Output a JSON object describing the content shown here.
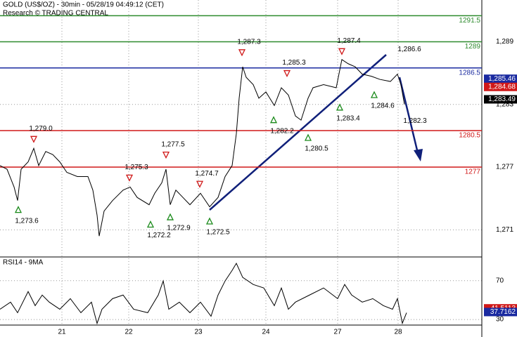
{
  "chart_data": [
    {
      "type": "line",
      "title": "GOLD (US$/OZ) - 30min - 05/28/19 04:49:12 (CET)",
      "subtitle": "Research © TRADING CENTRAL",
      "xlim": [
        0,
        342.5
      ],
      "xticks": [
        {
          "value": 44,
          "label": "21"
        },
        {
          "value": 91.5,
          "label": "22"
        },
        {
          "value": 141,
          "label": "23"
        },
        {
          "value": 189,
          "label": "24"
        },
        {
          "value": 240,
          "label": "27"
        },
        {
          "value": 283,
          "label": "28"
        }
      ],
      "ylim": [
        1268.4,
        1293
      ],
      "yticks": [
        {
          "value": 1271,
          "label": "1,271"
        },
        {
          "value": 1277,
          "label": "1,277"
        },
        {
          "value": 1283,
          "label": "1,283"
        },
        {
          "value": 1289,
          "label": "1,289"
        }
      ],
      "grid": true,
      "series": [
        {
          "color": "#000000",
          "x": [
            0,
            5,
            10,
            12.5,
            15,
            20,
            24,
            27.5,
            32.5,
            37.5,
            42.5,
            47.5,
            55,
            62.5,
            66,
            69,
            70.5,
            74,
            80,
            87.5,
            92.5,
            97.5,
            106,
            110,
            115,
            118,
            121,
            125,
            130,
            135,
            142.5,
            149,
            155,
            160,
            165,
            168,
            170,
            172.5,
            175,
            180,
            184,
            189,
            195,
            200,
            205,
            210,
            214,
            219,
            222.5,
            230,
            239,
            243,
            247.5,
            252.5,
            257.5,
            264,
            270,
            277.5,
            282.5,
            285,
            287.5
          ],
          "values": [
            1277.15,
            1276.8,
            1275.1,
            1273.8,
            1276.8,
            1277.5,
            1278.8,
            1277.15,
            1278.5,
            1278.2,
            1277.5,
            1276.5,
            1276.1,
            1276.1,
            1274.8,
            1272.4,
            1270.4,
            1272.8,
            1273.8,
            1274.8,
            1275.1,
            1274.1,
            1273.4,
            1274.5,
            1275.5,
            1276.8,
            1273.4,
            1274.8,
            1274.1,
            1273.4,
            1274.5,
            1273.2,
            1274.1,
            1276.1,
            1277.15,
            1280.2,
            1283.6,
            1286.6,
            1285.6,
            1284.9,
            1283.6,
            1284.2,
            1282.9,
            1284.6,
            1283.9,
            1281.9,
            1281.5,
            1283.6,
            1284.6,
            1284.9,
            1284.6,
            1287.3,
            1286.9,
            1286.6,
            1285.9,
            1285.7,
            1285.4,
            1285.2,
            1285.9,
            1284.9,
            1283.0
          ]
        }
      ],
      "levels": [
        {
          "value": 1291.5,
          "label": "1291.5",
          "color": "#2e8b2e"
        },
        {
          "value": 1289,
          "label": "1289",
          "color": "#2e8b2e"
        },
        {
          "value": 1286.5,
          "label": "1286.5",
          "color": "#1a2aa0"
        },
        {
          "value": 1280.5,
          "label": "1280.5",
          "color": "#d01818"
        },
        {
          "value": 1277,
          "label": "1277",
          "color": "#d01818"
        }
      ],
      "price_tags": [
        {
          "value": 1285.46,
          "label": "1,285.46",
          "color": "#1a2aa0"
        },
        {
          "value": 1284.68,
          "label": "1,284.68",
          "color": "#d01818"
        },
        {
          "value": 1283.49,
          "label": "1,283.49",
          "color": "#000000"
        }
      ],
      "annotations": [
        {
          "x": 24,
          "value": 1279.0,
          "label": "1,279.0",
          "marker": "down"
        },
        {
          "x": 13,
          "value": 1273.6,
          "label": "1,273.6",
          "marker": "up"
        },
        {
          "x": 92,
          "value": 1275.3,
          "label": "1,275.3",
          "marker": "down"
        },
        {
          "x": 107,
          "value": 1272.2,
          "label": "1,272.2",
          "marker": "up"
        },
        {
          "x": 118,
          "value": 1277.5,
          "label": "1,277.5",
          "marker": "down"
        },
        {
          "x": 121,
          "value": 1272.9,
          "label": "1,272.9",
          "marker": "up"
        },
        {
          "x": 142,
          "value": 1274.7,
          "label": "1,274.7",
          "marker": "down"
        },
        {
          "x": 149,
          "value": 1272.5,
          "label": "1,272.5",
          "marker": "up"
        },
        {
          "x": 172,
          "value": 1287.3,
          "label": "1,287.3",
          "marker": "down"
        },
        {
          "x": 194.5,
          "value": 1282.2,
          "label": "1,282.2",
          "marker": "up"
        },
        {
          "x": 204,
          "value": 1285.3,
          "label": "1,285.3",
          "marker": "down"
        },
        {
          "x": 219,
          "value": 1280.5,
          "label": "1,280.5",
          "marker": "up"
        },
        {
          "x": 243,
          "value": 1287.4,
          "label": "1,287.4",
          "marker": "down"
        },
        {
          "x": 241.5,
          "value": 1283.4,
          "label": "1,283.4",
          "marker": "up"
        },
        {
          "x": 266,
          "value": 1284.6,
          "label": "1,284.6",
          "marker": "up"
        },
        {
          "x": 289,
          "value": 1286.6,
          "label": "1,286.6",
          "marker": "above"
        },
        {
          "x": 293,
          "value": 1282.3,
          "label": "1,282.3",
          "marker": "below"
        }
      ]
    },
    {
      "type": "line",
      "title": "RSI14 - 9MA",
      "xlim": [
        0,
        342.5
      ],
      "ylim": [
        25,
        93
      ],
      "yticks": [
        30,
        70
      ],
      "grid": true,
      "series": [
        {
          "color": "#000000",
          "x": [
            0,
            7.5,
            12.5,
            20,
            25,
            30,
            35,
            42.5,
            50,
            57.5,
            65,
            69,
            72.5,
            80,
            87.5,
            95,
            105,
            112.5,
            116,
            120,
            127.5,
            135,
            142.5,
            150,
            155,
            160,
            165,
            168,
            172.5,
            180,
            187.5,
            195,
            200,
            205,
            210,
            220,
            230,
            240,
            245,
            250,
            257.5,
            265,
            272.5,
            279,
            282.5,
            286,
            289
          ],
          "values": [
            40.6,
            47.9,
            37.0,
            58.8,
            44.3,
            55.2,
            47.9,
            40.6,
            51.5,
            37.0,
            47.9,
            26,
            40.6,
            51.5,
            55.2,
            40.6,
            37.0,
            55.2,
            69.7,
            40.6,
            47.9,
            37.0,
            47.9,
            33.4,
            55.2,
            69.7,
            80.6,
            87.9,
            73.4,
            66.1,
            62.5,
            44.3,
            62.5,
            40.6,
            47.9,
            55.2,
            62.5,
            51.5,
            66.1,
            55.2,
            47.9,
            51.5,
            44.3,
            40.6,
            51.5,
            26.1,
            37.0
          ]
        }
      ],
      "price_tags": [
        {
          "value": 41.5113,
          "label": "41.5113",
          "color": "#d01818"
        },
        {
          "value": 37.7162,
          "label": "37.7162",
          "color": "#1a2aa0"
        }
      ]
    }
  ]
}
